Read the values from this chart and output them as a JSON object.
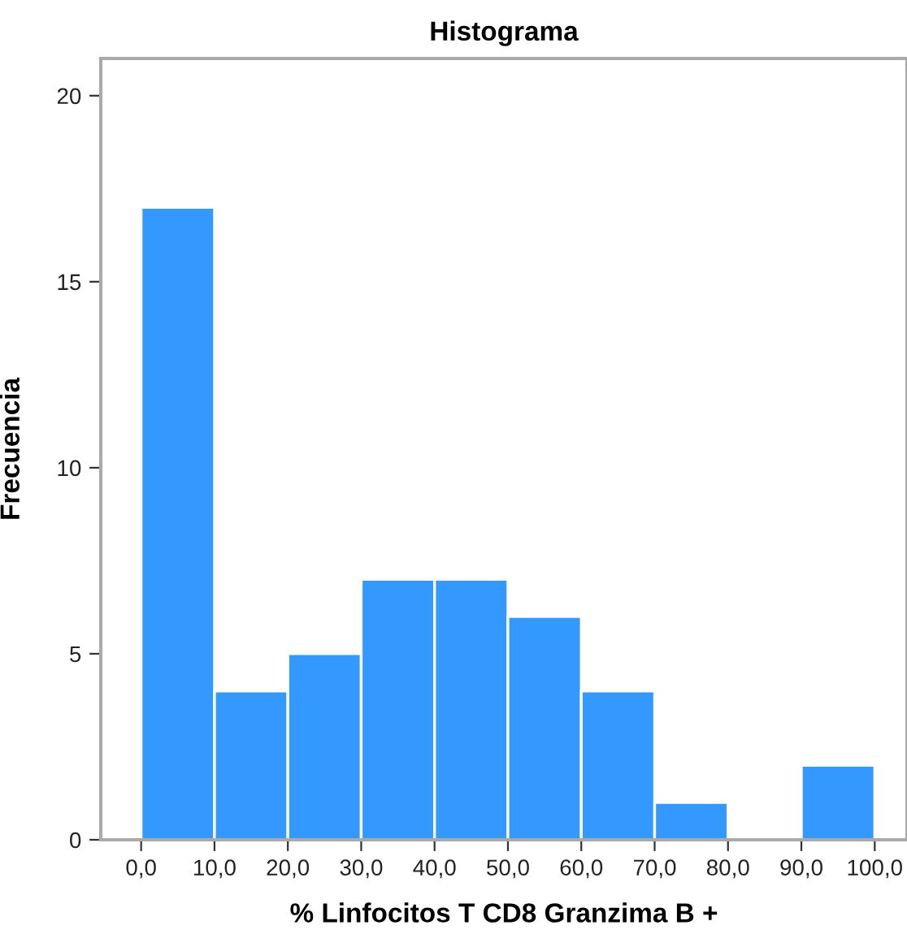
{
  "chart_data": {
    "type": "histogram",
    "title": "Histograma",
    "xlabel": "% Linfocitos T CD8 Granzima B +",
    "ylabel": "Frecuencia",
    "bins": [
      0,
      10,
      20,
      30,
      40,
      50,
      60,
      70,
      80,
      90,
      100
    ],
    "values": [
      17,
      4,
      5,
      7,
      7,
      6,
      4,
      1,
      0,
      2
    ],
    "color": "#3399ff",
    "xlim": [
      -5.5,
      104.4
    ],
    "ylim": [
      0,
      21
    ],
    "xticks": [
      {
        "value": 0,
        "label": "0,0"
      },
      {
        "value": 10,
        "label": "10,0"
      },
      {
        "value": 20,
        "label": "20,0"
      },
      {
        "value": 30,
        "label": "30,0"
      },
      {
        "value": 40,
        "label": "40,0"
      },
      {
        "value": 50,
        "label": "50,0"
      },
      {
        "value": 60,
        "label": "60,0"
      },
      {
        "value": 70,
        "label": "70,0"
      },
      {
        "value": 80,
        "label": "80,0"
      },
      {
        "value": 90,
        "label": "90,0"
      },
      {
        "value": 100,
        "label": "100,0"
      }
    ],
    "yticks": [
      0,
      5,
      10,
      15,
      20
    ],
    "grid": false,
    "legend": false
  }
}
